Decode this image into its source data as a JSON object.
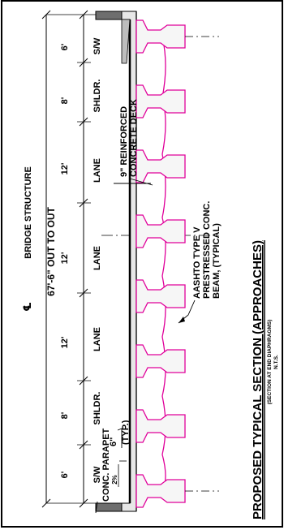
{
  "drawing": {
    "title": "PROPOSED TYPICAL SECTION (APPROACHES)",
    "subtitle": "(SECTION AT END DIAPHRAGMS)",
    "scale": "N.T.S.",
    "centerline_label": "BRIDGE STRUCTURE",
    "centerline_symbol": "℄",
    "overall_dim": "67'-6\" OUT TO OUT",
    "lanes": [
      {
        "label": "S/W",
        "width": "6'"
      },
      {
        "label": "SHLDR.",
        "width": "8'"
      },
      {
        "label": "LANE",
        "width": "12'"
      },
      {
        "label": "LANE",
        "width": "12'"
      },
      {
        "label": "LANE",
        "width": "12'"
      },
      {
        "label": "SHLDR.",
        "width": "8'"
      },
      {
        "label": "S/W",
        "width": "6'"
      }
    ],
    "deck_note": [
      "9\" REINFORCED",
      "CONCRETE DECK"
    ],
    "beam_note": [
      "AASHTO TYPE V",
      "PRESTRESSED CONC.",
      "BEAM, (TYPICAL)"
    ],
    "parapet_note": "CONC. PARAPET",
    "slab_thickness": "6\"",
    "typ_note": "(TYP.)",
    "slope": "2%",
    "beam_count": 8,
    "colors": {
      "beam": "#e0009a",
      "linework": "#000000"
    }
  }
}
